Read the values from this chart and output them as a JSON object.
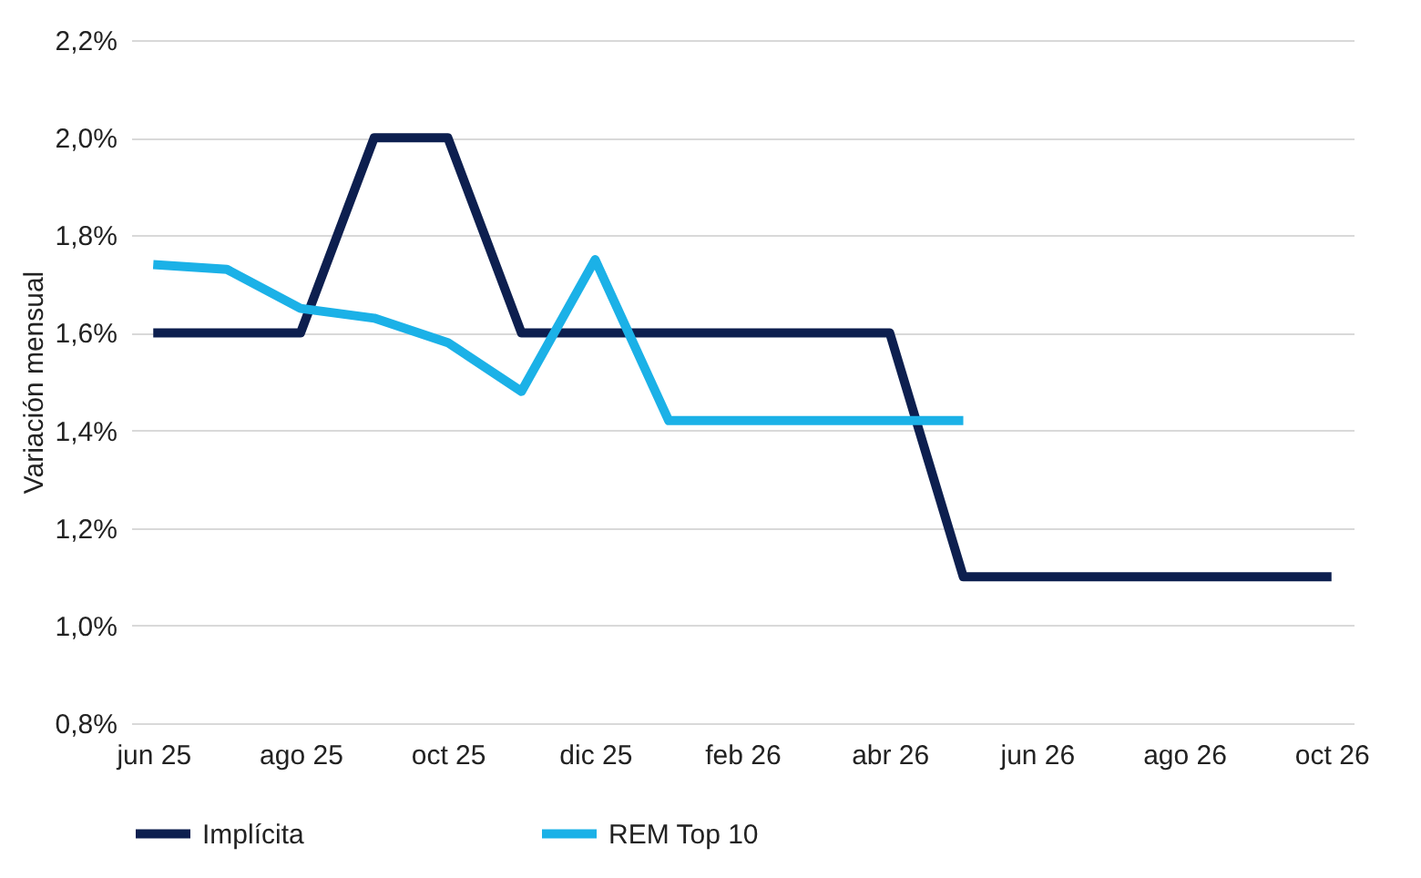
{
  "chart_data": {
    "type": "line",
    "ylabel": "Variación mensual",
    "categories": [
      "jun 25",
      null,
      "ago 25",
      null,
      "oct 25",
      null,
      "dic 25",
      null,
      "feb 26",
      null,
      "abr 26",
      null,
      "jun 26",
      null,
      "ago 26",
      null,
      "oct 26"
    ],
    "series": [
      {
        "name": "Implícita",
        "color": "#0d1f4f",
        "values": [
          1.6,
          1.6,
          1.6,
          2.0,
          2.0,
          1.6,
          1.6,
          1.6,
          1.6,
          1.6,
          1.6,
          1.1,
          1.1,
          1.1,
          1.1,
          1.1,
          1.1
        ]
      },
      {
        "name": "REM Top 10",
        "color": "#1bb1e7",
        "values": [
          1.74,
          1.73,
          1.65,
          1.63,
          1.58,
          1.48,
          1.75,
          1.42,
          1.42,
          1.42,
          1.42,
          1.42,
          null,
          null,
          null,
          null,
          null
        ]
      }
    ],
    "ylim": [
      0.8,
      2.2
    ],
    "yticks": [
      {
        "value": 0.8,
        "label": "0,8%"
      },
      {
        "value": 1.0,
        "label": "1,0%"
      },
      {
        "value": 1.2,
        "label": "1,2%"
      },
      {
        "value": 1.4,
        "label": "1,4%"
      },
      {
        "value": 1.6,
        "label": "1,6%"
      },
      {
        "value": 1.8,
        "label": "1,8%"
      },
      {
        "value": 2.0,
        "label": "2,0%"
      },
      {
        "value": 2.2,
        "label": "2,2%"
      }
    ],
    "grid": "y",
    "legend": "bottom",
    "marker": "none",
    "line_style": "solid"
  }
}
